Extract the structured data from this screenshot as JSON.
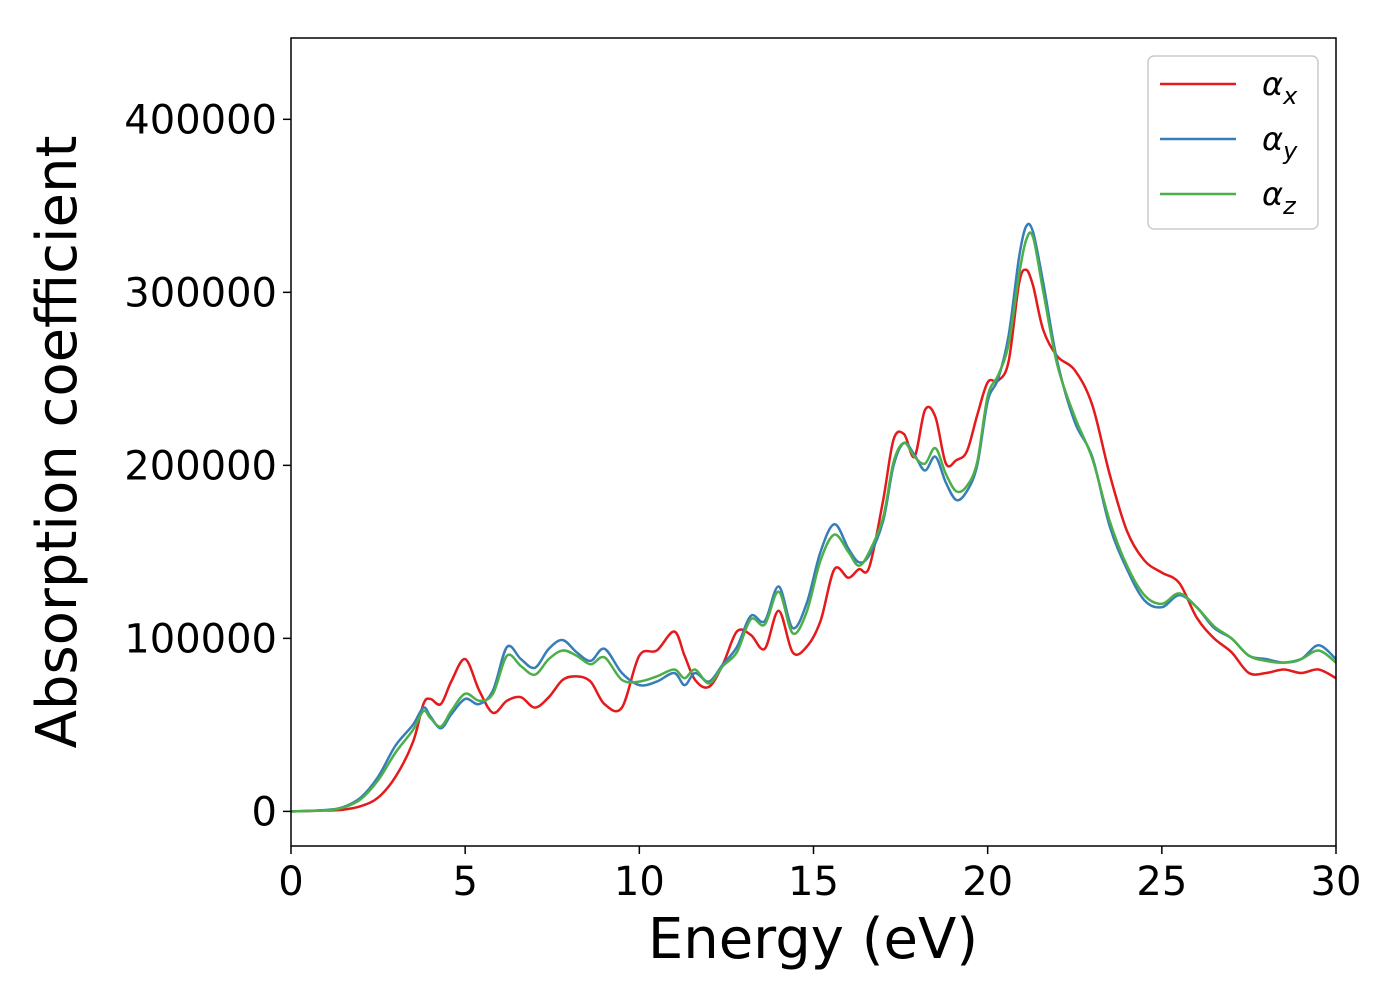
{
  "chart_data": {
    "type": "line",
    "title": "",
    "xlabel": "Energy (eV)",
    "ylabel": "Absorption coefficient",
    "xlim": [
      0,
      30
    ],
    "ylim": [
      -20000,
      447000
    ],
    "xticks": [
      0,
      5,
      10,
      15,
      20,
      25,
      30
    ],
    "xtick_labels": [
      "0",
      "5",
      "10",
      "15",
      "20",
      "25",
      "30"
    ],
    "yticks": [
      0,
      100000,
      200000,
      300000,
      400000
    ],
    "ytick_labels": [
      "0",
      "100000",
      "200000",
      "300000",
      "400000"
    ],
    "grid": false,
    "legend_position": "top-right",
    "series": [
      {
        "name": "α",
        "subscript": "x",
        "color": "#e41a1c",
        "x": [
          0,
          1,
          1.5,
          2,
          2.5,
          3,
          3.5,
          3.8,
          4,
          4.3,
          4.6,
          5,
          5.4,
          5.8,
          6.2,
          6.6,
          7,
          7.4,
          7.8,
          8.2,
          8.6,
          9,
          9.5,
          10,
          10.5,
          11,
          11.3,
          11.6,
          12,
          12.4,
          12.8,
          13.2,
          13.6,
          14,
          14.4,
          14.8,
          15.2,
          15.6,
          16,
          16.3,
          16.6,
          17,
          17.3,
          17.6,
          17.9,
          18.2,
          18.5,
          18.8,
          19.1,
          19.4,
          19.7,
          20,
          20.3,
          20.6,
          20.9,
          21.1,
          21.3,
          21.6,
          22,
          22.5,
          23,
          23.5,
          24,
          24.5,
          25,
          25.5,
          26,
          26.5,
          27,
          27.5,
          28,
          28.5,
          29,
          29.5,
          30
        ],
        "y": [
          0,
          500,
          1000,
          3000,
          8000,
          20000,
          40000,
          62000,
          65000,
          62000,
          75000,
          88000,
          70000,
          57000,
          64000,
          66000,
          60000,
          66000,
          76000,
          78000,
          75000,
          62000,
          60000,
          90000,
          93000,
          104000,
          90000,
          76000,
          72000,
          85000,
          104000,
          102000,
          94000,
          116000,
          92000,
          95000,
          110000,
          140000,
          135000,
          140000,
          141000,
          180000,
          215000,
          218000,
          205000,
          232000,
          228000,
          201000,
          203000,
          208000,
          229000,
          248000,
          249000,
          260000,
          305000,
          313000,
          304000,
          278000,
          263000,
          255000,
          235000,
          195000,
          162000,
          145000,
          138000,
          132000,
          112000,
          100000,
          92000,
          80000,
          80000,
          82000,
          80000,
          82000,
          77000
        ]
      },
      {
        "name": "α",
        "subscript": "y",
        "color": "#377eb8",
        "x": [
          0,
          1,
          1.5,
          2,
          2.5,
          3,
          3.5,
          3.8,
          4,
          4.3,
          4.6,
          5,
          5.4,
          5.8,
          6.2,
          6.6,
          7,
          7.4,
          7.8,
          8.2,
          8.6,
          9,
          9.5,
          10,
          10.5,
          11,
          11.3,
          11.6,
          12,
          12.4,
          12.8,
          13.2,
          13.6,
          14,
          14.4,
          14.8,
          15.2,
          15.6,
          16,
          16.3,
          16.6,
          17,
          17.3,
          17.6,
          17.9,
          18.2,
          18.5,
          18.8,
          19.1,
          19.4,
          19.7,
          20,
          20.3,
          20.6,
          20.9,
          21.1,
          21.3,
          21.6,
          22,
          22.5,
          23,
          23.5,
          24,
          24.5,
          25,
          25.5,
          26,
          26.5,
          27,
          27.5,
          28,
          28.5,
          29,
          29.5,
          30
        ],
        "y": [
          0,
          800,
          2500,
          8000,
          20000,
          38000,
          50000,
          60000,
          55000,
          48000,
          56000,
          65000,
          62000,
          70000,
          95000,
          88000,
          83000,
          94000,
          99000,
          92000,
          87000,
          94000,
          80000,
          73000,
          75000,
          80000,
          73000,
          80000,
          75000,
          85000,
          95000,
          113000,
          110000,
          130000,
          106000,
          120000,
          150000,
          166000,
          152000,
          144000,
          148000,
          168000,
          200000,
          213000,
          206000,
          197000,
          205000,
          190000,
          180000,
          185000,
          200000,
          237000,
          250000,
          275000,
          320000,
          338000,
          335000,
          305000,
          260000,
          225000,
          205000,
          165000,
          140000,
          122000,
          118000,
          125000,
          118000,
          106000,
          100000,
          90000,
          88000,
          86000,
          88000,
          96000,
          88000
        ]
      },
      {
        "name": "α",
        "subscript": "z",
        "color": "#4daf4a",
        "x": [
          0,
          1,
          1.5,
          2,
          2.5,
          3,
          3.5,
          3.8,
          4,
          4.3,
          4.6,
          5,
          5.4,
          5.8,
          6.2,
          6.6,
          7,
          7.4,
          7.8,
          8.2,
          8.6,
          9,
          9.5,
          10,
          10.5,
          11,
          11.3,
          11.6,
          12,
          12.4,
          12.8,
          13.2,
          13.6,
          14,
          14.4,
          14.8,
          15.2,
          15.6,
          16,
          16.3,
          16.6,
          17,
          17.3,
          17.6,
          17.9,
          18.2,
          18.5,
          18.8,
          19.1,
          19.4,
          19.7,
          20,
          20.3,
          20.6,
          20.9,
          21.1,
          21.3,
          21.6,
          22,
          22.5,
          23,
          23.5,
          24,
          24.5,
          25,
          25.5,
          26,
          26.5,
          27,
          27.5,
          28,
          28.5,
          29,
          29.5,
          30
        ],
        "y": [
          0,
          700,
          2200,
          7000,
          18000,
          34000,
          47000,
          58000,
          54000,
          49000,
          58000,
          68000,
          64000,
          68000,
          90000,
          84000,
          79000,
          88000,
          93000,
          90000,
          85000,
          89000,
          76000,
          75000,
          78000,
          82000,
          77000,
          82000,
          74000,
          84000,
          92000,
          111000,
          108000,
          127000,
          103000,
          115000,
          145000,
          160000,
          150000,
          142000,
          150000,
          170000,
          202000,
          213000,
          205000,
          201000,
          210000,
          195000,
          185000,
          188000,
          202000,
          240000,
          252000,
          270000,
          310000,
          330000,
          332000,
          300000,
          258000,
          228000,
          204000,
          168000,
          142000,
          125000,
          120000,
          126000,
          118000,
          107000,
          100000,
          90000,
          87000,
          86000,
          88000,
          93000,
          86000
        ]
      }
    ]
  }
}
